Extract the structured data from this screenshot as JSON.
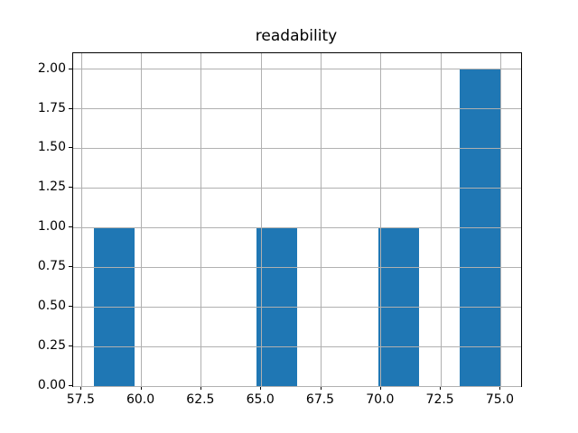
{
  "chart_data": {
    "type": "bar",
    "subtype": "histogram",
    "title": "readability",
    "xlabel": "",
    "ylabel": "",
    "bin_edges": [
      58.0,
      59.7,
      61.4,
      63.1,
      64.8,
      66.5,
      68.2,
      69.9,
      71.6,
      73.3,
      75.0
    ],
    "counts": [
      1,
      0,
      0,
      0,
      1,
      0,
      0,
      1,
      0,
      2
    ],
    "xlim": [
      57.15,
      75.85
    ],
    "ylim": [
      0,
      2.1
    ],
    "xticks": [
      57.5,
      60.0,
      62.5,
      65.0,
      67.5,
      70.0,
      72.5,
      75.0
    ],
    "xtick_labels": [
      "57.5",
      "60.0",
      "62.5",
      "65.0",
      "67.5",
      "70.0",
      "72.5",
      "75.0"
    ],
    "yticks": [
      0.0,
      0.25,
      0.5,
      0.75,
      1.0,
      1.25,
      1.5,
      1.75,
      2.0
    ],
    "ytick_labels": [
      "0.00",
      "0.25",
      "0.50",
      "0.75",
      "1.00",
      "1.25",
      "1.50",
      "1.75",
      "2.00"
    ],
    "grid": true,
    "grid_on_top_of_bars": true,
    "legend": null,
    "colors": {
      "bar": "#1f77b4",
      "grid": "#b0b0b0",
      "spine": "#000000",
      "text": "#000000",
      "background": "#ffffff"
    }
  }
}
